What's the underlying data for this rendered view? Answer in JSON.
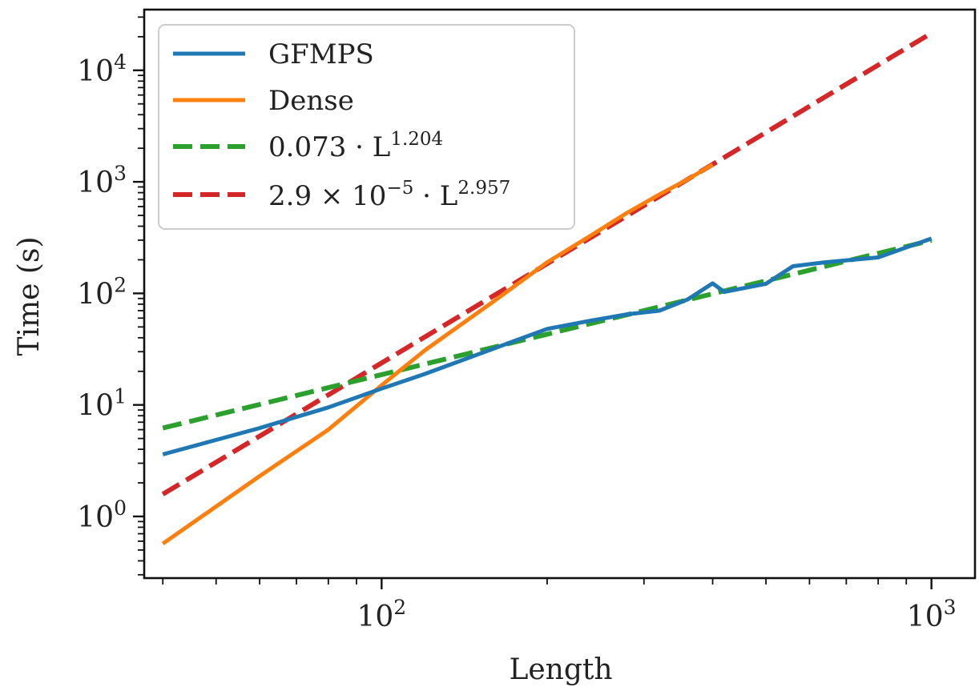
{
  "chart_data": {
    "type": "line",
    "title": "",
    "xlabel": "Length",
    "ylabel": "Time (s)",
    "xscale": "log",
    "yscale": "log",
    "xlim": [
      37,
      1200
    ],
    "ylim": [
      0.28,
      35000
    ],
    "grid": false,
    "legend_position": "top-left",
    "x_ticks": [
      {
        "value": 100,
        "base": "10",
        "exp": "2"
      },
      {
        "value": 1000,
        "base": "10",
        "exp": "3"
      }
    ],
    "y_ticks": [
      {
        "value": 1,
        "base": "10",
        "exp": "0"
      },
      {
        "value": 10,
        "base": "10",
        "exp": "1"
      },
      {
        "value": 100,
        "base": "10",
        "exp": "2"
      },
      {
        "value": 1000,
        "base": "10",
        "exp": "3"
      },
      {
        "value": 10000,
        "base": "10",
        "exp": "4"
      }
    ],
    "series": [
      {
        "name": "GFMPS",
        "color": "#1f77b4",
        "style": "solid",
        "x": [
          40,
          60,
          80,
          100,
          120,
          160,
          200,
          240,
          280,
          320,
          360,
          400,
          420,
          500,
          560,
          640,
          800,
          1000
        ],
        "y": [
          3.6,
          6.2,
          9.5,
          14,
          19,
          32,
          48,
          57,
          65,
          70,
          88,
          123,
          103,
          122,
          175,
          190,
          210,
          310
        ]
      },
      {
        "name": "Dense",
        "color": "#ff7f0e",
        "style": "solid",
        "x": [
          40,
          60,
          80,
          100,
          120,
          160,
          200,
          240,
          280,
          320,
          360,
          400
        ],
        "y": [
          0.57,
          2.3,
          6.0,
          15,
          31,
          85,
          190,
          330,
          530,
          770,
          1050,
          1430
        ]
      },
      {
        "name": "0.073 · L^1.204",
        "label_text": "0.073 · L",
        "label_exp": "1.204",
        "color": "#2ca02c",
        "style": "dashed",
        "function": {
          "coef": 0.073,
          "exp": 1.204
        },
        "x_range": [
          40,
          1000
        ]
      },
      {
        "name": "2.9 × 10^-5 · L^2.957",
        "label_text": "2.9 × 10",
        "label_exp1": "−5",
        "label_mid": " · L",
        "label_exp2": "2.957",
        "color": "#d62728",
        "style": "dashed",
        "function": {
          "coef": 2.9e-05,
          "exp": 2.957
        },
        "x_range": [
          40,
          1000
        ]
      }
    ]
  }
}
